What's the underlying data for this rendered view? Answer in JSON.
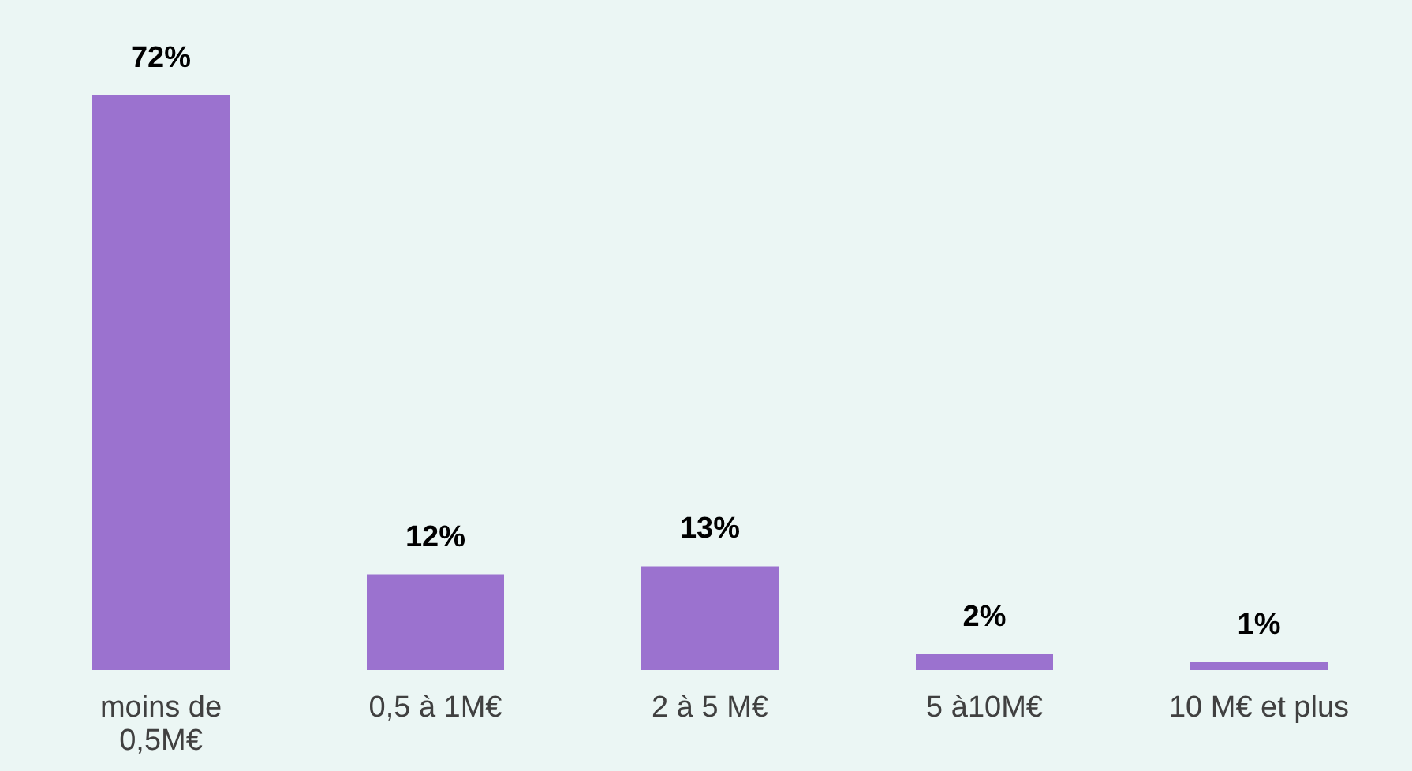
{
  "chart_data": {
    "type": "bar",
    "categories": [
      "moins de\n0,5M€",
      "0,5 à 1M€",
      "2 à 5 M€",
      "5 à10M€",
      "10 M€ et plus"
    ],
    "values": [
      72,
      12,
      13,
      2,
      1
    ],
    "value_labels": [
      "72%",
      "12%",
      "13%",
      "2%",
      "1%"
    ],
    "color": "#9b72cf"
  }
}
